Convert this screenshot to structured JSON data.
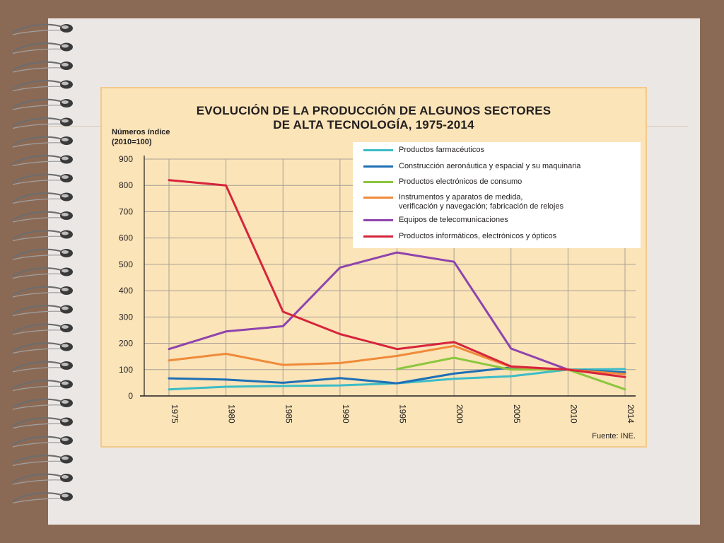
{
  "chart_data": {
    "type": "line",
    "title": "EVOLUCIÓN DE LA PRODUCCIÓN DE ALGUNOS SECTORES",
    "subtitle": "DE ALTA TECNOLOGÍA, 1975-2014",
    "ylabel_line1": "Números índice",
    "ylabel_line2": "(2010=100)",
    "xlabel": "",
    "source": "Fuente: INE.",
    "x": [
      "1975",
      "1980",
      "1985",
      "1990",
      "1995",
      "2000",
      "2005",
      "2010",
      "2014"
    ],
    "ylim": [
      0,
      900
    ],
    "yticks": [
      0,
      100,
      200,
      300,
      400,
      500,
      600,
      700,
      800,
      900
    ],
    "grid": true,
    "legend_position": "top-right",
    "series": [
      {
        "name": "Productos farmacéuticos",
        "color": "#3cbcc6",
        "values": [
          25,
          35,
          38,
          40,
          48,
          65,
          75,
          100,
          102
        ]
      },
      {
        "name": "Construcción aeronáutica y espacial y su maquinaria",
        "color": "#1f6fb5",
        "values": [
          67,
          62,
          50,
          68,
          48,
          85,
          108,
          100,
          90
        ]
      },
      {
        "name": "Productos electrónicos de consumo",
        "color": "#8cc63f",
        "values": [
          null,
          null,
          null,
          null,
          102,
          145,
          100,
          100,
          25
        ]
      },
      {
        "name": "Instrumentos y aparatos de medida,\nverificación y navegación; fabricación de relojes",
        "color": "#ef8a3a",
        "values": [
          135,
          160,
          118,
          125,
          152,
          190,
          110,
          100,
          83
        ]
      },
      {
        "name": "Equipos de telecomunicaciones",
        "color": "#8e44ad",
        "values": [
          178,
          245,
          265,
          488,
          545,
          510,
          180,
          100,
          null
        ]
      },
      {
        "name": "Productos informáticos, electrónicos y ópticos",
        "color": "#d6243b",
        "values": [
          820,
          800,
          320,
          235,
          178,
          205,
          112,
          100,
          72
        ]
      }
    ]
  }
}
